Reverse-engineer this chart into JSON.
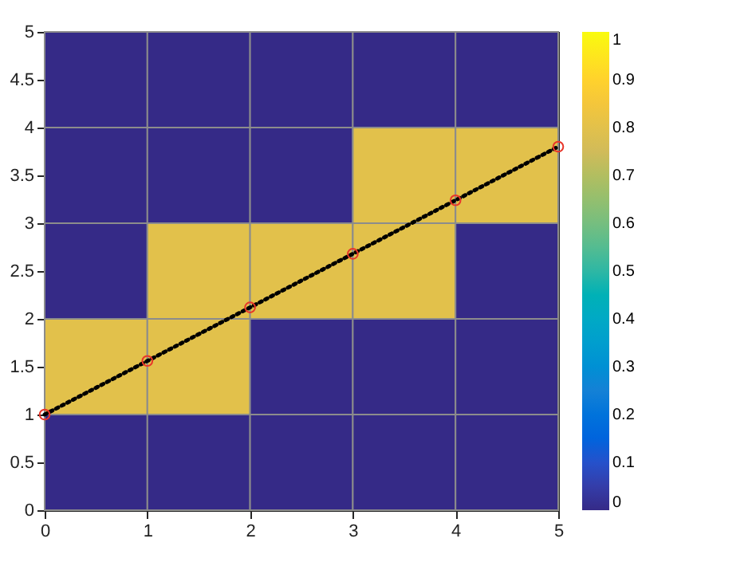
{
  "chart_data": {
    "type": "heatmap",
    "xlim": [
      0,
      5
    ],
    "xticks": [
      0,
      1,
      2,
      3,
      4,
      5
    ],
    "ylim": [
      0,
      5
    ],
    "yticks": [
      0,
      0.5,
      1,
      1.5,
      2,
      2.5,
      3,
      3.5,
      4,
      4.5,
      5
    ],
    "cells": [
      [
        0,
        0,
        0,
        0,
        0
      ],
      [
        0,
        0,
        0,
        0.8,
        0.8
      ],
      [
        0,
        0.8,
        0.8,
        0.8,
        0
      ],
      [
        0.8,
        0.8,
        0,
        0,
        0
      ],
      [
        0,
        0,
        0,
        0,
        0
      ]
    ],
    "clim": [
      0,
      1
    ],
    "cticks": [
      0,
      0.1,
      0.2,
      0.3,
      0.4,
      0.5,
      0.6,
      0.7,
      0.8,
      0.9,
      1
    ],
    "series": [
      {
        "type": "line",
        "color": "#000000",
        "line_style": "dotted",
        "x": [
          0,
          1,
          2,
          3,
          4,
          5
        ],
        "values": [
          1,
          1.56,
          2.12,
          2.68,
          3.24,
          3.8
        ]
      },
      {
        "type": "scatter",
        "color": "#e8362a",
        "marker": "circle",
        "x": [
          0,
          1,
          2,
          3,
          4,
          5
        ],
        "values": [
          1,
          1.56,
          2.12,
          2.68,
          3.24,
          3.8
        ]
      }
    ]
  }
}
